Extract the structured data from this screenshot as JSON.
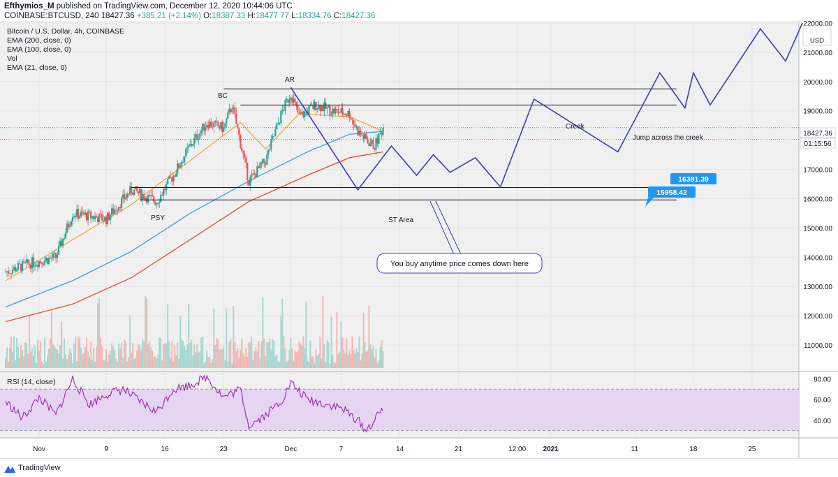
{
  "header": {
    "author": "Efthymios_M",
    "published_text": " published on TradingView.com, December 12, 2020 10:44:06 UTC",
    "symbol": "COINBASE:BTCUSD, 240",
    "last_price": "18427.36",
    "change": "+385.21 (+2.14%)",
    "open_label": "O:",
    "open": "18387.33",
    "high_label": "H:",
    "high": "18477.77",
    "low_label": "L:",
    "low": "18334.76",
    "close_label": "C:",
    "close": "18427.36"
  },
  "legend": {
    "title": "Bitcoin / U.S. Dollar, 4h, COINBASE",
    "ema200": "EMA (200, close, 0)",
    "ema100": "EMA (100, close, 0)",
    "vol": "Vol",
    "ema21": "EMA (21, close, 0)",
    "rsi": "RSI (14, close)"
  },
  "price_axis": {
    "currency": "USD",
    "ticks": [
      "22000.00",
      "21000.00",
      "20000.00",
      "19000.00",
      "17000.00",
      "16000.00",
      "15000.00",
      "14000.00",
      "13000.00",
      "12000.00",
      "11000.00"
    ],
    "last_price_badge": "18427.36",
    "countdown_badge": "01:15:56"
  },
  "rsi_axis": {
    "ticks": [
      "80.00",
      "60.00",
      "40.00"
    ]
  },
  "time_axis": {
    "ticks": [
      "Nov",
      "9",
      "16",
      "23",
      "Dec",
      "7",
      "14",
      "21",
      "12:00",
      "2021",
      "11",
      "18",
      "25"
    ]
  },
  "annotations": {
    "ar": "AR",
    "bc": "BC",
    "psy": "PSY",
    "st_area": "ST Area",
    "creek": "Creek",
    "jump": "Jump across the creek",
    "callout": "You buy anytime price comes down here",
    "label_16381": "16381.39",
    "label_15958": "15958.42"
  },
  "colors": {
    "up": "#26a69a",
    "down": "#ef5350",
    "ema21": "#f5a030",
    "ema100": "#4aa3df",
    "ema200": "#e8553c",
    "projection": "#3c3cb8",
    "rsi": "#9c27b0",
    "rsi_band": "#e6d5f2",
    "badge": "#2196f3",
    "pane_bg": "#f0f0f0"
  },
  "chart_data": {
    "type": "candlestick",
    "title": "Bitcoin / U.S. Dollar, 4h, COINBASE",
    "symbol": "COINBASE:BTCUSD",
    "timeframe": "4h",
    "ylim": [
      10500,
      22000
    ],
    "x_range": [
      "2020-10-28",
      "2021-01-30"
    ],
    "price_path_close": [
      {
        "x": "2020-10-28",
        "y": 13500
      },
      {
        "x": "2020-10-31",
        "y": 13800
      },
      {
        "x": "2020-11-03",
        "y": 14000
      },
      {
        "x": "2020-11-05",
        "y": 15500
      },
      {
        "x": "2020-11-09",
        "y": 15300
      },
      {
        "x": "2020-11-12",
        "y": 16300
      },
      {
        "x": "2020-11-15",
        "y": 15900
      },
      {
        "x": "2020-11-17",
        "y": 16800
      },
      {
        "x": "2020-11-19",
        "y": 17800
      },
      {
        "x": "2020-11-21",
        "y": 18600
      },
      {
        "x": "2020-11-23",
        "y": 18400
      },
      {
        "x": "2020-11-24",
        "y": 19200
      },
      {
        "x": "2020-11-26",
        "y": 16600
      },
      {
        "x": "2020-11-28",
        "y": 17300
      },
      {
        "x": "2020-11-30",
        "y": 19000
      },
      {
        "x": "2020-12-01",
        "y": 19600
      },
      {
        "x": "2020-12-02",
        "y": 18800
      },
      {
        "x": "2020-12-04",
        "y": 19200
      },
      {
        "x": "2020-12-06",
        "y": 19000
      },
      {
        "x": "2020-12-08",
        "y": 18900
      },
      {
        "x": "2020-12-09",
        "y": 18300
      },
      {
        "x": "2020-12-10",
        "y": 18000
      },
      {
        "x": "2020-12-11",
        "y": 17800
      },
      {
        "x": "2020-12-12",
        "y": 18427
      }
    ],
    "ema21": [
      {
        "x": "2020-10-28",
        "y": 13200
      },
      {
        "x": "2020-11-05",
        "y": 14600
      },
      {
        "x": "2020-11-12",
        "y": 15800
      },
      {
        "x": "2020-11-19",
        "y": 17300
      },
      {
        "x": "2020-11-25",
        "y": 18600
      },
      {
        "x": "2020-11-28",
        "y": 17700
      },
      {
        "x": "2020-12-02",
        "y": 18900
      },
      {
        "x": "2020-12-08",
        "y": 18800
      },
      {
        "x": "2020-12-12",
        "y": 18300
      }
    ],
    "ema100": [
      {
        "x": "2020-10-28",
        "y": 12300
      },
      {
        "x": "2020-11-05",
        "y": 13200
      },
      {
        "x": "2020-11-12",
        "y": 14200
      },
      {
        "x": "2020-11-19",
        "y": 15500
      },
      {
        "x": "2020-11-26",
        "y": 16600
      },
      {
        "x": "2020-12-03",
        "y": 17600
      },
      {
        "x": "2020-12-08",
        "y": 18200
      },
      {
        "x": "2020-12-12",
        "y": 18300
      }
    ],
    "ema200": [
      {
        "x": "2020-10-28",
        "y": 11800
      },
      {
        "x": "2020-11-05",
        "y": 12400
      },
      {
        "x": "2020-11-12",
        "y": 13300
      },
      {
        "x": "2020-11-19",
        "y": 14600
      },
      {
        "x": "2020-11-26",
        "y": 15900
      },
      {
        "x": "2020-12-03",
        "y": 16800
      },
      {
        "x": "2020-12-08",
        "y": 17400
      },
      {
        "x": "2020-12-12",
        "y": 17600
      }
    ],
    "projection_path": [
      {
        "x": "2020-12-01",
        "y": 19800
      },
      {
        "x": "2020-12-09",
        "y": 16300
      },
      {
        "x": "2020-12-13",
        "y": 17800
      },
      {
        "x": "2020-12-16",
        "y": 16800
      },
      {
        "x": "2020-12-18",
        "y": 17500
      },
      {
        "x": "2020-12-20",
        "y": 16900
      },
      {
        "x": "2020-12-23",
        "y": 17400
      },
      {
        "x": "2020-12-26",
        "y": 16400
      },
      {
        "x": "2020-12-30",
        "y": 19400
      },
      {
        "x": "2021-01-09",
        "y": 17600
      },
      {
        "x": "2021-01-14",
        "y": 20300
      },
      {
        "x": "2021-01-17",
        "y": 19100
      },
      {
        "x": "2021-01-18",
        "y": 20300
      },
      {
        "x": "2021-01-20",
        "y": 19200
      },
      {
        "x": "2021-01-26",
        "y": 21800
      },
      {
        "x": "2021-01-29",
        "y": 20700
      },
      {
        "x": "2021-01-31",
        "y": 22000
      }
    ],
    "horizontal_levels": [
      {
        "label": "BC",
        "y": 19750,
        "x_from": "2020-11-23",
        "x_to": "2021-01-16"
      },
      {
        "label": "",
        "y": 19200,
        "x_from": "2020-11-25",
        "x_to": "2021-01-16"
      },
      {
        "label": "16381.39",
        "y": 16381.39,
        "x_from": "2020-11-12",
        "x_to": "2021-01-16"
      },
      {
        "label": "15958.42",
        "y": 15958.42,
        "x_from": "2020-11-13",
        "x_to": "2021-01-16"
      }
    ],
    "last_price": 18427.36,
    "rsi": {
      "ylim": [
        25,
        85
      ],
      "band": [
        30,
        70
      ],
      "values": [
        {
          "x": "2020-10-28",
          "y": 58
        },
        {
          "x": "2020-10-30",
          "y": 42
        },
        {
          "x": "2020-11-01",
          "y": 62
        },
        {
          "x": "2020-11-03",
          "y": 45
        },
        {
          "x": "2020-11-05",
          "y": 80
        },
        {
          "x": "2020-11-07",
          "y": 55
        },
        {
          "x": "2020-11-09",
          "y": 65
        },
        {
          "x": "2020-11-11",
          "y": 70
        },
        {
          "x": "2020-11-13",
          "y": 58
        },
        {
          "x": "2020-11-15",
          "y": 48
        },
        {
          "x": "2020-11-17",
          "y": 70
        },
        {
          "x": "2020-11-19",
          "y": 74
        },
        {
          "x": "2020-11-21",
          "y": 82
        },
        {
          "x": "2020-11-23",
          "y": 62
        },
        {
          "x": "2020-11-25",
          "y": 70
        },
        {
          "x": "2020-11-26",
          "y": 35
        },
        {
          "x": "2020-11-28",
          "y": 45
        },
        {
          "x": "2020-11-30",
          "y": 60
        },
        {
          "x": "2020-12-01",
          "y": 76
        },
        {
          "x": "2020-12-03",
          "y": 60
        },
        {
          "x": "2020-12-05",
          "y": 56
        },
        {
          "x": "2020-12-07",
          "y": 52
        },
        {
          "x": "2020-12-09",
          "y": 40
        },
        {
          "x": "2020-12-10",
          "y": 30
        },
        {
          "x": "2020-12-11",
          "y": 40
        },
        {
          "x": "2020-12-12",
          "y": 52
        }
      ]
    }
  },
  "footer": {
    "brand": "TradingView"
  }
}
